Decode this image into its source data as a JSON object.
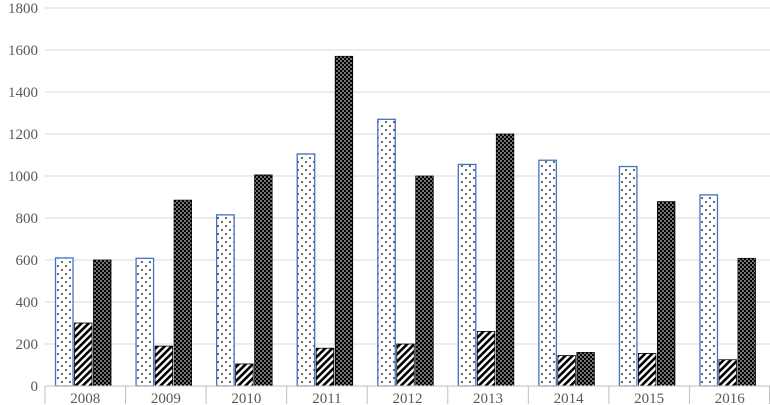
{
  "chart_data": {
    "type": "bar",
    "title": "",
    "xlabel": "",
    "ylabel": "",
    "categories": [
      "2008",
      "2009",
      "2010",
      "2011",
      "2012",
      "2013",
      "2014",
      "2015",
      "2016"
    ],
    "ylim": [
      0,
      1800
    ],
    "yticks": [
      "0",
      "200",
      "400",
      "600",
      "800",
      "1000",
      "1200",
      "1400",
      "1600",
      "1800"
    ],
    "grid": true,
    "legend": "none",
    "series": [
      {
        "values": [
          610,
          608,
          815,
          1105,
          1270,
          1055,
          1075,
          1045,
          910
        ],
        "pattern": "dotted",
        "stroke": "#4472c4",
        "fill": "#ffffff"
      },
      {
        "values": [
          300,
          190,
          105,
          180,
          200,
          260,
          145,
          155,
          125
        ],
        "pattern": "diagonal-hatch",
        "stroke": "#000000",
        "fill": "#ffffff"
      },
      {
        "values": [
          600,
          885,
          1005,
          1570,
          1000,
          1200,
          160,
          878,
          608
        ],
        "pattern": "dense-checker",
        "stroke": "#000000",
        "fill": "#000000"
      }
    ]
  }
}
